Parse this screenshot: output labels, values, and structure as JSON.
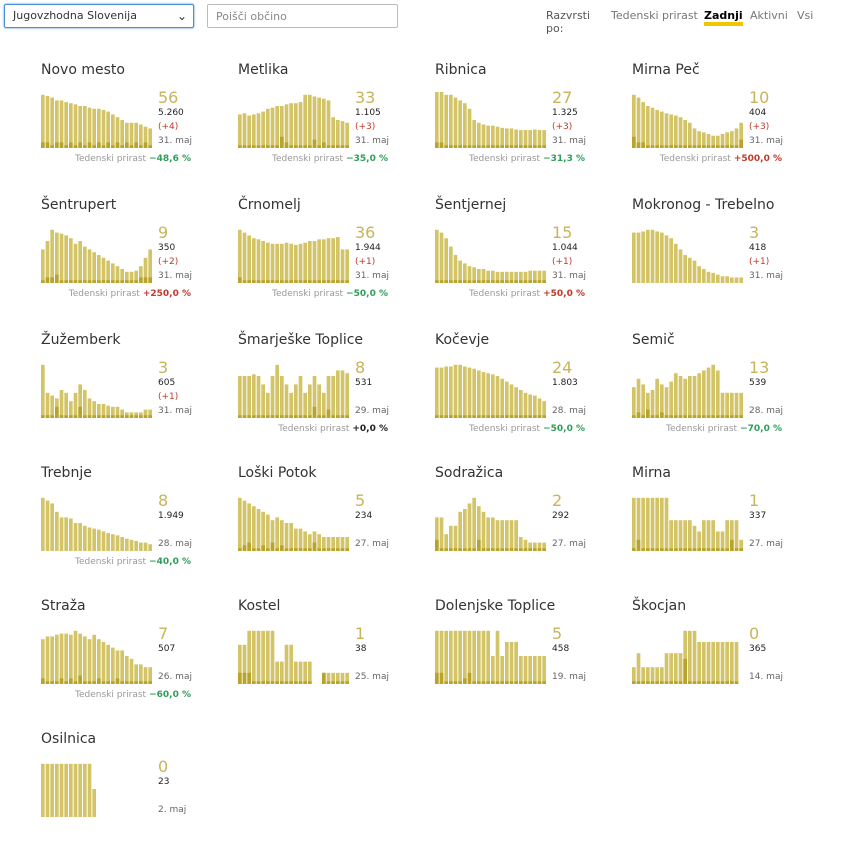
{
  "toolbar": {
    "region": "Jugovzhodna Slovenija",
    "search_placeholder": "Poišči občino",
    "sort_label": "Razvrsti po:",
    "sort_options": [
      "Tedenski prirast",
      "Zadnji",
      "Aktivni",
      "Vsi"
    ],
    "active_sort": "Zadnji"
  },
  "growth_label": "Tedenski prirast",
  "colors": {
    "bar": "#d4c468",
    "bar_dark": "#b8a42a",
    "accent": "#f5c400",
    "neg": "#2e9e5a",
    "pos": "#c0392b"
  },
  "municipalities": [
    {
      "name": "Novo mesto",
      "count": "56",
      "total": "5.260",
      "delta": "(+4)",
      "date": "31. maj",
      "growth": "−48,6 %",
      "gsign": "neg",
      "bars": [
        0.95,
        0.93,
        0.9,
        0.85,
        0.85,
        0.82,
        0.8,
        0.78,
        0.75,
        0.75,
        0.72,
        0.7,
        0.7,
        0.68,
        0.65,
        0.6,
        0.55,
        0.5,
        0.45,
        0.45,
        0.45,
        0.42,
        0.38,
        0.35
      ],
      "dark": [
        0.1,
        0.1,
        0.05,
        0.1,
        0.1,
        0.05,
        0.1,
        0.05,
        0.1,
        0.05,
        0.1,
        0.05,
        0.1,
        0.05,
        0.1,
        0.05,
        0.1,
        0.05,
        0.1,
        0.05,
        0.1,
        0.05,
        0.1,
        0.05
      ]
    },
    {
      "name": "Metlika",
      "count": "33",
      "total": "1.105",
      "delta": "(+3)",
      "date": "31. maj",
      "growth": "−35,0 %",
      "gsign": "neg",
      "bars": [
        0.6,
        0.62,
        0.58,
        0.6,
        0.62,
        0.65,
        0.7,
        0.72,
        0.75,
        0.75,
        0.78,
        0.8,
        0.8,
        0.82,
        0.95,
        0.95,
        0.92,
        0.9,
        0.88,
        0.85,
        0.55,
        0.5,
        0.48,
        0.45
      ],
      "dark": [
        0.05,
        0.05,
        0.05,
        0.05,
        0.05,
        0.05,
        0.05,
        0.05,
        0.05,
        0.2,
        0.1,
        0.05,
        0.05,
        0.05,
        0.05,
        0.05,
        0.15,
        0.05,
        0.1,
        0.05,
        0.05,
        0.05,
        0.05,
        0.05
      ]
    },
    {
      "name": "Ribnica",
      "count": "27",
      "total": "1.325",
      "delta": "(+3)",
      "date": "31. maj",
      "growth": "−31,3 %",
      "gsign": "neg",
      "bars": [
        1,
        1,
        0.95,
        0.95,
        0.9,
        0.85,
        0.8,
        0.7,
        0.5,
        0.45,
        0.42,
        0.4,
        0.4,
        0.38,
        0.36,
        0.35,
        0.35,
        0.33,
        0.32,
        0.32,
        0.32,
        0.33,
        0.32,
        0.32
      ],
      "dark": [
        0.1,
        0.1,
        0.05,
        0.05,
        0.05,
        0.05,
        0.05,
        0.05,
        0.05,
        0.05,
        0.05,
        0.05,
        0.05,
        0.05,
        0.05,
        0.05,
        0.05,
        0.05,
        0.05,
        0.05,
        0.05,
        0.05,
        0.05,
        0.05
      ]
    },
    {
      "name": "Mirna Peč",
      "count": "10",
      "total": "404",
      "delta": "(+3)",
      "date": "31. maj",
      "growth": "+500,0 %",
      "gsign": "pos",
      "bars": [
        0.95,
        0.9,
        0.82,
        0.75,
        0.72,
        0.68,
        0.65,
        0.62,
        0.6,
        0.58,
        0.55,
        0.5,
        0.45,
        0.35,
        0.3,
        0.28,
        0.25,
        0.22,
        0.22,
        0.25,
        0.28,
        0.3,
        0.35,
        0.45
      ],
      "dark": [
        0.2,
        0.1,
        0.1,
        0.05,
        0.05,
        0.05,
        0.05,
        0.05,
        0.05,
        0.05,
        0.05,
        0.05,
        0.05,
        0.05,
        0.05,
        0.05,
        0.05,
        0.05,
        0.05,
        0.05,
        0.05,
        0.05,
        0.05,
        0.15
      ]
    },
    {
      "name": "Šentrupert",
      "count": "9",
      "total": "350",
      "delta": "(+2)",
      "date": "31. maj",
      "growth": "+250,0 %",
      "gsign": "pos",
      "bars": [
        0.6,
        0.75,
        0.95,
        0.9,
        0.88,
        0.85,
        0.8,
        0.7,
        0.75,
        0.65,
        0.6,
        0.55,
        0.5,
        0.45,
        0.4,
        0.35,
        0.3,
        0.25,
        0.2,
        0.2,
        0.22,
        0.3,
        0.45,
        0.6
      ],
      "dark": [
        0.05,
        0.1,
        0.1,
        0.15,
        0.05,
        0.05,
        0.05,
        0.05,
        0.05,
        0.05,
        0.05,
        0.05,
        0.05,
        0.05,
        0.05,
        0.05,
        0.05,
        0.05,
        0.05,
        0.05,
        0.05,
        0.1,
        0.1,
        0.1
      ]
    },
    {
      "name": "Črnomelj",
      "count": "36",
      "total": "1.944",
      "delta": "(+1)",
      "date": "31. maj",
      "growth": "−50,0 %",
      "gsign": "neg",
      "bars": [
        0.95,
        0.9,
        0.85,
        0.8,
        0.78,
        0.75,
        0.72,
        0.7,
        0.7,
        0.7,
        0.72,
        0.7,
        0.68,
        0.7,
        0.72,
        0.75,
        0.75,
        0.78,
        0.78,
        0.8,
        0.8,
        0.82,
        0.6,
        0.6
      ],
      "dark": [
        0.1,
        0.05,
        0.05,
        0.05,
        0.05,
        0.05,
        0.05,
        0.05,
        0.05,
        0.05,
        0.05,
        0.05,
        0.05,
        0.05,
        0.05,
        0.05,
        0.05,
        0.05,
        0.05,
        0.05,
        0.05,
        0.05,
        0.05,
        0.05
      ]
    },
    {
      "name": "Šentjernej",
      "count": "15",
      "total": "1.044",
      "delta": "(+1)",
      "date": "31. maj",
      "growth": "+50,0 %",
      "gsign": "pos",
      "bars": [
        0.95,
        0.9,
        0.8,
        0.65,
        0.5,
        0.4,
        0.35,
        0.3,
        0.28,
        0.25,
        0.25,
        0.22,
        0.22,
        0.2,
        0.2,
        0.2,
        0.2,
        0.2,
        0.2,
        0.2,
        0.22,
        0.22,
        0.22,
        0.22
      ],
      "dark": [
        0.05,
        0.05,
        0.05,
        0.05,
        0.05,
        0.05,
        0.05,
        0.05,
        0.05,
        0.05,
        0.05,
        0.05,
        0.05,
        0.05,
        0.05,
        0.05,
        0.05,
        0.05,
        0.05,
        0.05,
        0.05,
        0.05,
        0.05,
        0.05
      ]
    },
    {
      "name": "Mokronog - Trebelno",
      "count": "3",
      "total": "418",
      "delta": "(+1)",
      "date": "31. maj",
      "growth": "",
      "gsign": "",
      "bars": [
        0.9,
        0.9,
        0.92,
        0.95,
        0.95,
        0.92,
        0.9,
        0.85,
        0.8,
        0.7,
        0.6,
        0.5,
        0.45,
        0.4,
        0.3,
        0.25,
        0.2,
        0.18,
        0.15,
        0.12,
        0.12,
        0.1,
        0.1,
        0.1
      ],
      "dark": [
        0,
        0,
        0,
        0,
        0,
        0,
        0,
        0,
        0,
        0,
        0,
        0,
        0,
        0,
        0,
        0,
        0,
        0,
        0,
        0,
        0,
        0,
        0,
        0
      ]
    },
    {
      "name": "Žužemberk",
      "count": "3",
      "total": "605",
      "delta": "(+1)",
      "date": "31. maj",
      "growth": "",
      "gsign": "",
      "bars": [
        0.95,
        0.45,
        0.4,
        0.35,
        0.5,
        0.45,
        0.3,
        0.45,
        0.6,
        0.5,
        0.35,
        0.3,
        0.25,
        0.25,
        0.22,
        0.2,
        0.2,
        0.15,
        0.1,
        0.1,
        0.1,
        0.1,
        0.15,
        0.15
      ],
      "dark": [
        0.05,
        0.05,
        0.05,
        0.2,
        0.05,
        0.05,
        0.05,
        0.05,
        0.2,
        0.05,
        0.05,
        0.05,
        0.05,
        0.05,
        0.05,
        0.05,
        0.05,
        0.05,
        0.05,
        0.05,
        0.05,
        0.05,
        0.05,
        0.05
      ]
    },
    {
      "name": "Šmarješke Toplice",
      "count": "8",
      "total": "531",
      "delta": "",
      "date": "29. maj",
      "growth": "+0,0 %",
      "gsign": "zero",
      "bars": [
        0.75,
        0.75,
        0.75,
        0.78,
        0.75,
        0.6,
        0.45,
        0.75,
        0.95,
        0.75,
        0.6,
        0.45,
        0.6,
        0.75,
        0.45,
        0.6,
        0.75,
        0.6,
        0.45,
        0.75,
        0.75,
        0.85,
        0.85,
        0.8
      ],
      "dark": [
        0.05,
        0.05,
        0.05,
        0.05,
        0.05,
        0.05,
        0.05,
        0.05,
        0.05,
        0.05,
        0.05,
        0.05,
        0.05,
        0.05,
        0.05,
        0.05,
        0.2,
        0.05,
        0.05,
        0.15,
        0.05,
        0.05,
        0.05,
        0.05
      ]
    },
    {
      "name": "Kočevje",
      "count": "24",
      "total": "1.803",
      "delta": "",
      "date": "28. maj",
      "growth": "−50,0 %",
      "gsign": "neg",
      "bars": [
        0.9,
        0.9,
        0.92,
        0.92,
        0.95,
        0.95,
        0.92,
        0.9,
        0.88,
        0.85,
        0.82,
        0.8,
        0.78,
        0.75,
        0.7,
        0.65,
        0.6,
        0.55,
        0.5,
        0.45,
        0.42,
        0.4,
        0.35,
        0.3
      ],
      "dark": [
        0.05,
        0.05,
        0.05,
        0.05,
        0.05,
        0.05,
        0.05,
        0.05,
        0.05,
        0.05,
        0.05,
        0.05,
        0.05,
        0.05,
        0.05,
        0.05,
        0.05,
        0.05,
        0.05,
        0.05,
        0.05,
        0.05,
        0.05,
        0.05
      ]
    },
    {
      "name": "Semič",
      "count": "13",
      "total": "539",
      "delta": "",
      "date": "28. maj",
      "growth": "−70,0 %",
      "gsign": "neg",
      "bars": [
        0.55,
        0.7,
        0.6,
        0.45,
        0.5,
        0.7,
        0.6,
        0.55,
        0.65,
        0.8,
        0.75,
        0.7,
        0.75,
        0.75,
        0.8,
        0.85,
        0.9,
        0.95,
        0.85,
        0.45,
        0.45,
        0.45,
        0.45,
        0.45
      ],
      "dark": [
        0.05,
        0.1,
        0.05,
        0.15,
        0.05,
        0.05,
        0.1,
        0.05,
        0.05,
        0.05,
        0.05,
        0.05,
        0.05,
        0.05,
        0.05,
        0.05,
        0.05,
        0.05,
        0.05,
        0.05,
        0.05,
        0.05,
        0.05,
        0.05
      ]
    },
    {
      "name": "Trebnje",
      "count": "8",
      "total": "1.949",
      "delta": "",
      "date": "28. maj",
      "growth": "−40,0 %",
      "gsign": "neg",
      "bars": [
        0.95,
        0.9,
        0.85,
        0.7,
        0.6,
        0.6,
        0.58,
        0.5,
        0.5,
        0.45,
        0.42,
        0.4,
        0.38,
        0.35,
        0.32,
        0.3,
        0.28,
        0.25,
        0.22,
        0.2,
        0.18,
        0.15,
        0.15,
        0.12
      ],
      "dark": [
        0,
        0,
        0,
        0,
        0,
        0,
        0,
        0,
        0,
        0,
        0,
        0,
        0,
        0,
        0,
        0,
        0,
        0,
        0,
        0,
        0,
        0,
        0,
        0
      ]
    },
    {
      "name": "Loški Potok",
      "count": "5",
      "total": "234",
      "delta": "",
      "date": "27. maj",
      "growth": "",
      "gsign": "",
      "bars": [
        0.95,
        0.9,
        0.85,
        0.8,
        0.75,
        0.7,
        0.65,
        0.55,
        0.6,
        0.55,
        0.5,
        0.5,
        0.4,
        0.4,
        0.35,
        0.3,
        0.35,
        0.3,
        0.25,
        0.25,
        0.25,
        0.25,
        0.25,
        0.25
      ],
      "dark": [
        0.05,
        0.1,
        0.15,
        0.05,
        0.05,
        0.1,
        0.05,
        0.15,
        0.05,
        0.1,
        0.05,
        0.05,
        0.05,
        0.05,
        0.05,
        0.05,
        0.15,
        0.05,
        0.05,
        0.05,
        0.05,
        0.05,
        0.05,
        0.05
      ]
    },
    {
      "name": "Sodražica",
      "count": "2",
      "total": "292",
      "delta": "",
      "date": "27. maj",
      "growth": "",
      "gsign": "",
      "bars": [
        0.6,
        0.6,
        0.3,
        0.45,
        0.45,
        0.7,
        0.75,
        0.85,
        0.95,
        0.8,
        0.7,
        0.6,
        0.6,
        0.55,
        0.55,
        0.55,
        0.55,
        0.55,
        0.25,
        0.2,
        0.15,
        0.15,
        0.15,
        0.15
      ],
      "dark": [
        0.2,
        0.05,
        0.05,
        0.05,
        0.05,
        0.05,
        0.05,
        0.05,
        0.05,
        0.2,
        0.05,
        0.05,
        0.05,
        0.05,
        0.05,
        0.05,
        0.05,
        0.05,
        0.05,
        0.05,
        0.05,
        0.05,
        0.05,
        0.05
      ]
    },
    {
      "name": "Mirna",
      "count": "1",
      "total": "337",
      "delta": "",
      "date": "27. maj",
      "growth": "",
      "gsign": "",
      "bars": [
        0.95,
        0.95,
        0.95,
        0.95,
        0.95,
        0.95,
        0.95,
        0.95,
        0.55,
        0.55,
        0.55,
        0.55,
        0.55,
        0.45,
        0.35,
        0.55,
        0.55,
        0.55,
        0.35,
        0.35,
        0.55,
        0.55,
        0.55,
        0.2
      ],
      "dark": [
        0.05,
        0.2,
        0.05,
        0.05,
        0.05,
        0.05,
        0.05,
        0.05,
        0.05,
        0.05,
        0.05,
        0.05,
        0.05,
        0.05,
        0.05,
        0.05,
        0.05,
        0.05,
        0.05,
        0.05,
        0.05,
        0.2,
        0.05,
        0.05
      ]
    },
    {
      "name": "Straža",
      "count": "7",
      "total": "507",
      "delta": "",
      "date": "26. maj",
      "growth": "−60,0 %",
      "gsign": "neg",
      "bars": [
        0.8,
        0.85,
        0.85,
        0.88,
        0.9,
        0.9,
        0.88,
        0.95,
        0.9,
        0.85,
        0.8,
        0.88,
        0.8,
        0.75,
        0.7,
        0.65,
        0.6,
        0.6,
        0.5,
        0.45,
        0.35,
        0.35,
        0.3,
        0.3
      ],
      "dark": [
        0.1,
        0.05,
        0.05,
        0.05,
        0.1,
        0.05,
        0.1,
        0.05,
        0.15,
        0.05,
        0.05,
        0.05,
        0.1,
        0.05,
        0.05,
        0.05,
        0.1,
        0.05,
        0.05,
        0.05,
        0.05,
        0.05,
        0.05,
        0.05
      ]
    },
    {
      "name": "Kostel",
      "count": "1",
      "total": "38",
      "delta": "",
      "date": "25. maj",
      "growth": "",
      "gsign": "",
      "bars": [
        0.7,
        0.7,
        0.95,
        0.95,
        0.95,
        0.95,
        0.95,
        0.95,
        0.4,
        0.4,
        0.7,
        0.7,
        0.4,
        0.4,
        0.4,
        0.4,
        0,
        0,
        0.2,
        0.2,
        0.2,
        0.2,
        0.2,
        0.2
      ],
      "dark": [
        0.2,
        0.2,
        0.2,
        0.05,
        0.05,
        0.05,
        0.05,
        0.05,
        0.05,
        0.05,
        0.05,
        0.05,
        0.05,
        0.05,
        0.05,
        0.05,
        0,
        0,
        0.2,
        0.05,
        0.05,
        0.05,
        0.05,
        0.05
      ]
    },
    {
      "name": "Dolenjske Toplice",
      "count": "5",
      "total": "458",
      "delta": "",
      "date": "19. maj",
      "growth": "",
      "gsign": "",
      "bars": [
        0.95,
        0.95,
        0.95,
        0.95,
        0.95,
        0.95,
        0.95,
        0.95,
        0.95,
        0.95,
        0.95,
        0.95,
        0.5,
        0.95,
        0.5,
        0.75,
        0.75,
        0.75,
        0.5,
        0.5,
        0.5,
        0.5,
        0.5,
        0.5
      ],
      "dark": [
        0.2,
        0.2,
        0.05,
        0.05,
        0.05,
        0.05,
        0.1,
        0.2,
        0.05,
        0.05,
        0.05,
        0.05,
        0.05,
        0.05,
        0.05,
        0.05,
        0.05,
        0.05,
        0.05,
        0.05,
        0.05,
        0.05,
        0.05,
        0.05
      ]
    },
    {
      "name": "Škocjan",
      "count": "0",
      "total": "365",
      "delta": "",
      "date": "14. maj",
      "growth": "",
      "gsign": "",
      "bars": [
        0.3,
        0.55,
        0.3,
        0.3,
        0.3,
        0.3,
        0.3,
        0.55,
        0.55,
        0.55,
        0.55,
        0.95,
        0.95,
        0.95,
        0.75,
        0.75,
        0.75,
        0.75,
        0.75,
        0.75,
        0.75,
        0.75,
        0.75,
        0
      ],
      "dark": [
        0.05,
        0.05,
        0.05,
        0.05,
        0.05,
        0.05,
        0.05,
        0.05,
        0.05,
        0.05,
        0.05,
        0.45,
        0.05,
        0.05,
        0.05,
        0.05,
        0.05,
        0.05,
        0.05,
        0.05,
        0.05,
        0.05,
        0.05,
        0
      ]
    },
    {
      "name": "Osilnica",
      "count": "0",
      "total": "23",
      "delta": "",
      "date": "2. maj",
      "growth": "",
      "gsign": "",
      "bars": [
        0.95,
        0.95,
        0.95,
        0.95,
        0.95,
        0.95,
        0.95,
        0.95,
        0.95,
        0.95,
        0.95,
        0.5,
        0,
        0,
        0,
        0,
        0,
        0,
        0,
        0,
        0,
        0,
        0,
        0
      ],
      "dark": [
        0,
        0,
        0,
        0,
        0,
        0,
        0,
        0,
        0,
        0,
        0,
        0,
        0,
        0,
        0,
        0,
        0,
        0,
        0,
        0,
        0,
        0,
        0,
        0
      ]
    }
  ]
}
